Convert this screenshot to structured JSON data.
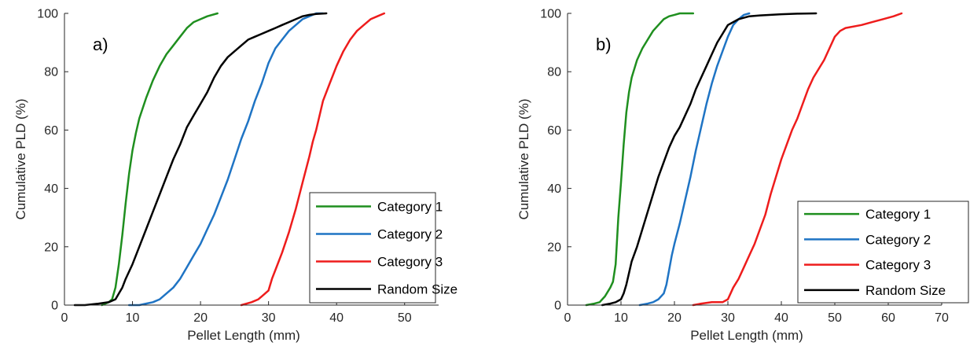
{
  "chart_data": [
    {
      "type": "line",
      "panel_label": "a)",
      "xlabel": "Pellet Length (mm)",
      "ylabel": "Cumulative PLD (%)",
      "xlim": [
        0,
        55
      ],
      "ylim": [
        0,
        100
      ],
      "xticks": [
        0,
        10,
        20,
        30,
        40,
        50
      ],
      "yticks": [
        0,
        20,
        40,
        60,
        80,
        100
      ],
      "grid": false,
      "legend_position": "bottom-right",
      "series": [
        {
          "name": "Category 1",
          "color": "#1f8f1f",
          "x": [
            5.5,
            6.5,
            7.0,
            7.5,
            8.0,
            8.5,
            9.0,
            9.5,
            10.0,
            10.5,
            11.0,
            12.0,
            13.0,
            14.0,
            15.0,
            16.0,
            17.0,
            18.0,
            19.0,
            20.0,
            21.0,
            22.5
          ],
          "y": [
            0,
            1,
            2,
            6,
            14,
            24,
            35,
            45,
            53,
            59,
            64,
            71,
            77,
            82,
            86,
            89,
            92,
            95,
            97,
            98,
            99,
            100
          ]
        },
        {
          "name": "Category 2",
          "color": "#1f74c4",
          "x": [
            9.5,
            11.0,
            12.0,
            13.0,
            14.0,
            15.0,
            16.0,
            17.0,
            18.0,
            19.0,
            20.0,
            21.0,
            22.0,
            23.0,
            24.0,
            25.0,
            26.0,
            27.0,
            28.0,
            29.0,
            30.0,
            31.0,
            32.0,
            33.0,
            34.0,
            35.0,
            36.0,
            37.0,
            38.0
          ],
          "y": [
            0,
            0,
            0.5,
            1,
            2,
            4,
            6,
            9,
            13,
            17,
            21,
            26,
            31,
            37,
            43,
            50,
            57,
            63,
            70,
            76,
            83,
            88,
            91,
            94,
            96,
            98,
            99,
            100,
            100
          ]
        },
        {
          "name": "Category 3",
          "color": "#ee1c1c",
          "x": [
            26.0,
            27.5,
            28.5,
            29.0,
            30.0,
            30.5,
            31.0,
            32.0,
            33.0,
            34.0,
            35.0,
            36.0,
            36.5,
            37.0,
            38.0,
            39.0,
            40.0,
            41.0,
            42.0,
            43.0,
            44.0,
            45.0,
            46.0,
            47.0
          ],
          "y": [
            0,
            1,
            2,
            3,
            5,
            9,
            12,
            18,
            25,
            33,
            42,
            51,
            56,
            60,
            70,
            76,
            82,
            87,
            91,
            94,
            96,
            98,
            99,
            100
          ]
        },
        {
          "name": "Random Size",
          "color": "#000000",
          "x": [
            1.5,
            3.0,
            5.0,
            6.5,
            7.5,
            8.0,
            8.5,
            9.0,
            10.0,
            11.0,
            12.0,
            13.0,
            14.0,
            15.0,
            16.0,
            17.0,
            18.0,
            19.0,
            20.0,
            21.0,
            22.0,
            23.0,
            24.0,
            25.0,
            26.0,
            27.0,
            28.0,
            29.0,
            30.0,
            31.0,
            32.0,
            33.0,
            34.0,
            35.0,
            36.0,
            37.0,
            38.5
          ],
          "y": [
            0,
            0,
            0.5,
            1,
            2,
            4,
            6,
            9,
            14,
            20,
            26,
            32,
            38,
            44,
            50,
            55,
            61,
            65,
            69,
            73,
            78,
            82,
            85,
            87,
            89,
            91,
            92,
            93,
            94,
            95,
            96,
            97,
            98,
            99,
            99.5,
            99.8,
            100
          ]
        }
      ]
    },
    {
      "type": "line",
      "panel_label": "b)",
      "xlabel": "Pellet Length (mm)",
      "ylabel": "Cumulative PLD (%)",
      "xlim": [
        0,
        70
      ],
      "ylim": [
        0,
        100
      ],
      "xticks": [
        0,
        10,
        20,
        30,
        40,
        50,
        60,
        70
      ],
      "yticks": [
        0,
        20,
        40,
        60,
        80,
        100
      ],
      "grid": false,
      "legend_position": "bottom-right",
      "series": [
        {
          "name": "Category 1",
          "color": "#1f8f1f",
          "x": [
            3.5,
            5.0,
            6.0,
            7.0,
            8.0,
            8.5,
            9.0,
            9.5,
            10.0,
            10.5,
            11.0,
            11.5,
            12.0,
            13.0,
            14.0,
            15.0,
            16.0,
            17.0,
            18.0,
            19.0,
            20.0,
            21.0,
            22.0,
            23.5
          ],
          "y": [
            0,
            0.5,
            1,
            3,
            6,
            8,
            14,
            30,
            42,
            55,
            66,
            73,
            78,
            84,
            88,
            91,
            94,
            96,
            98,
            99,
            99.5,
            100,
            100,
            100
          ]
        },
        {
          "name": "Category 2",
          "color": "#1f74c4",
          "x": [
            13.5,
            15.0,
            16.0,
            17.0,
            18.0,
            18.5,
            19.0,
            19.5,
            20.0,
            21.0,
            22.0,
            23.0,
            24.0,
            25.0,
            26.0,
            27.0,
            28.0,
            29.0,
            30.0,
            31.0,
            32.0,
            33.0,
            34.0
          ],
          "y": [
            0,
            0.5,
            1,
            2,
            4,
            7,
            12,
            17,
            21,
            28,
            36,
            44,
            53,
            61,
            69,
            76,
            82,
            87,
            92,
            96,
            98,
            99.5,
            100
          ]
        },
        {
          "name": "Category 3",
          "color": "#ee1c1c",
          "x": [
            23.5,
            25.0,
            27.0,
            29.0,
            30.0,
            30.5,
            31.0,
            32.0,
            33.0,
            34.0,
            35.0,
            36.0,
            37.0,
            38.0,
            39.0,
            40.0,
            41.0,
            42.0,
            43.0,
            44.0,
            45.0,
            46.0,
            47.0,
            48.0,
            49.0,
            50.0,
            51.0,
            52.0,
            55.0,
            57.0,
            59.0,
            61.0,
            62.5
          ],
          "y": [
            0,
            0.5,
            1,
            1,
            2,
            4,
            6,
            9,
            13,
            17,
            21,
            26,
            31,
            38,
            44,
            50,
            55,
            60,
            64,
            69,
            74,
            78,
            81,
            84,
            88,
            92,
            94,
            95,
            96,
            97,
            98,
            99,
            100
          ]
        },
        {
          "name": "Random Size",
          "color": "#000000",
          "x": [
            6.5,
            8.0,
            9.0,
            10.0,
            10.5,
            11.0,
            11.5,
            12.0,
            13.0,
            14.0,
            15.0,
            16.0,
            17.0,
            18.0,
            19.0,
            20.0,
            21.0,
            22.0,
            23.0,
            24.0,
            25.0,
            26.0,
            27.0,
            28.0,
            29.0,
            30.0,
            31.0,
            32.0,
            33.0,
            34.0,
            36.0,
            38.0,
            40.0,
            43.0,
            46.5
          ],
          "y": [
            0,
            0.5,
            1,
            2,
            4,
            7,
            11,
            15,
            20,
            26,
            32,
            38,
            44,
            49,
            54,
            58,
            61,
            65,
            69,
            74,
            78,
            82,
            86,
            90,
            93,
            96,
            97,
            98,
            98.5,
            99,
            99.3,
            99.5,
            99.7,
            99.9,
            100
          ]
        }
      ]
    }
  ]
}
